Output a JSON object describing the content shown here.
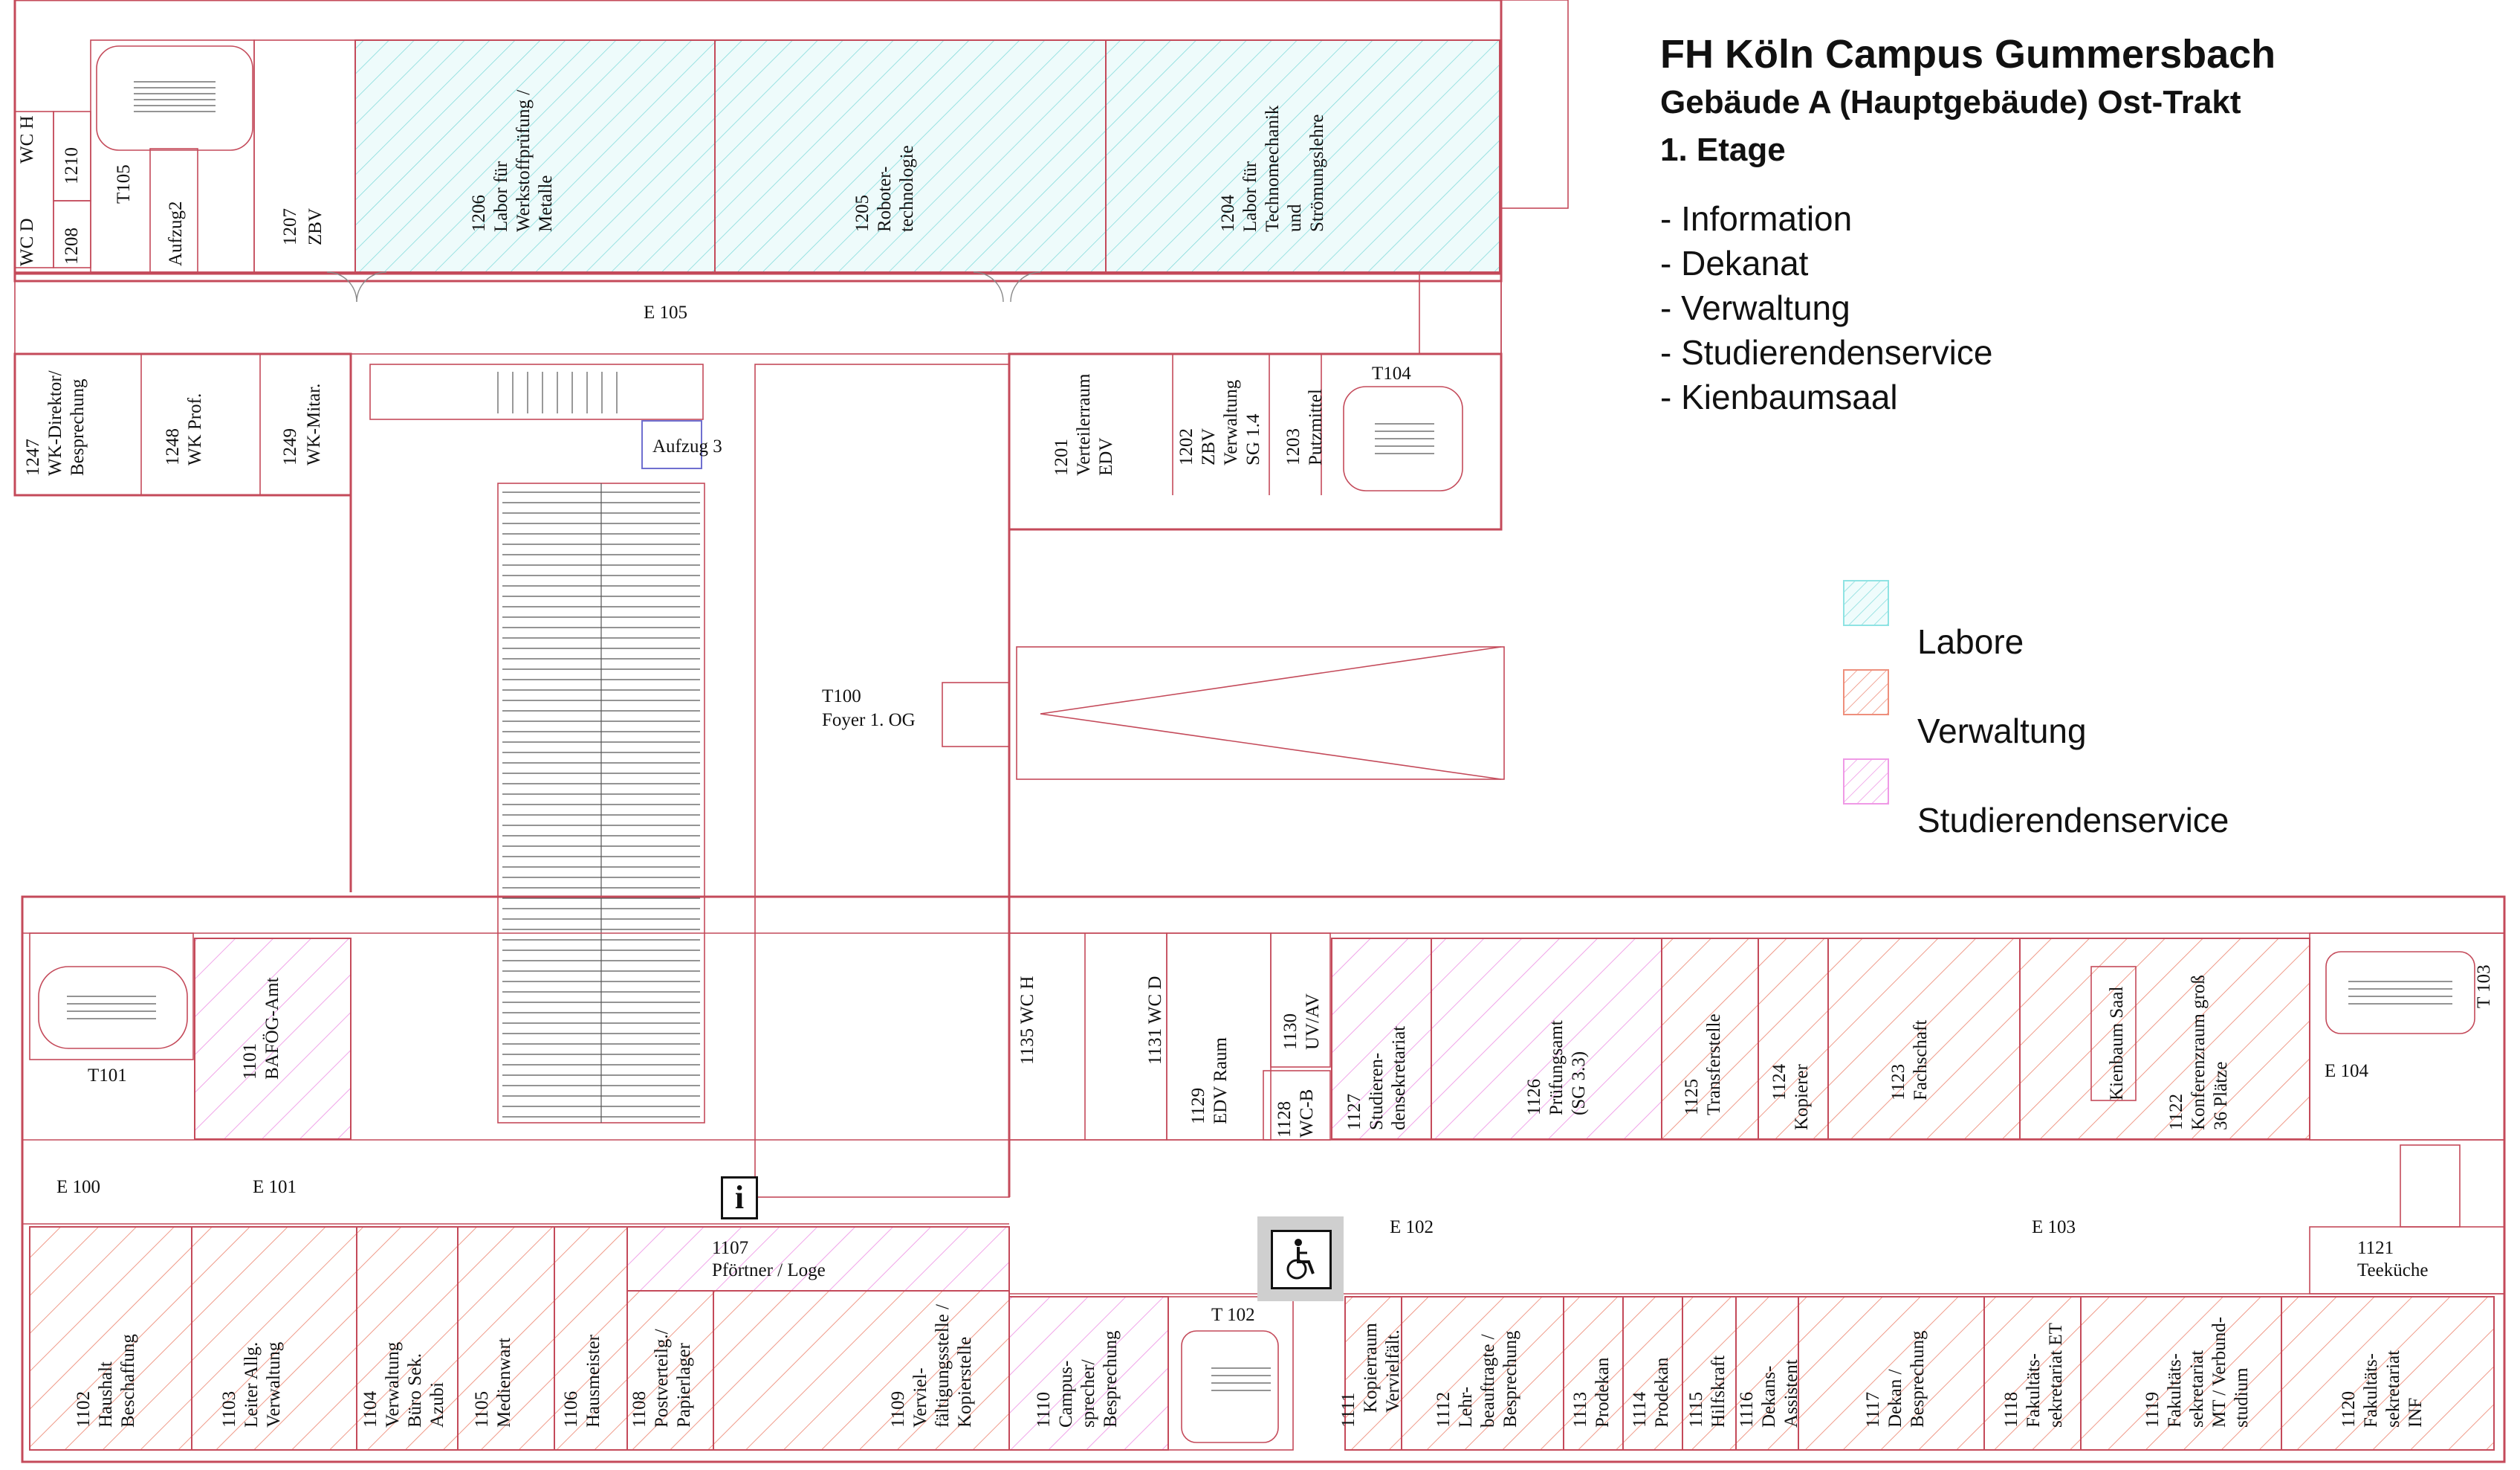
{
  "title": {
    "line1": "FH Köln Campus Gummersbach",
    "line2": "Gebäude A (Hauptgebäude) Ost-Trakt",
    "line3": "1. Etage"
  },
  "services": [
    "- Information",
    "- Dekanat",
    "- Verwaltung",
    "- Studierendenservice",
    "- Kienbaumsaal"
  ],
  "legend": [
    {
      "label": "Labore",
      "color": "#5fd3d6"
    },
    {
      "label": "Verwaltung",
      "color": "#e8735f"
    },
    {
      "label": "Studierendenservice",
      "color": "#e882e0"
    }
  ],
  "rooms_top": {
    "r1210": "1210",
    "wch": "WC H",
    "wcd": "WC D",
    "r1208": "1208",
    "t105": "T105",
    "aufzug2": "Aufzug2",
    "r1207a": "1207",
    "r1207b": "ZBV",
    "r1206a": "1206",
    "r1206b": "Labor für",
    "r1206c": "Werkstoffprüfung /",
    "r1206d": "Metalle",
    "r1205a": "1205",
    "r1205b": "Roboter-",
    "r1205c": "technologie",
    "r1204a": "1204",
    "r1204b": "Labor für",
    "r1204c": "Technomechanik",
    "r1204d": "und",
    "r1204e": "Strömungslehre",
    "e105": "E 105",
    "r1247a": "1247",
    "r1247b": "WK-Direktor/",
    "r1247c": "Besprechung",
    "r1248a": "1248",
    "r1248b": "WK Prof.",
    "r1249a": "1249",
    "r1249b": "WK-Mitar.",
    "aufzug3": "Aufzug 3",
    "r1201a": "1201",
    "r1201b": "Verteilerraum",
    "r1201c": "EDV",
    "r1202a": "1202",
    "r1202b": "ZBV",
    "r1202c": "Verwaltung",
    "r1202d": "SG 1.4",
    "r1203a": "1203",
    "r1203b": "Putzmittel",
    "t104": "T104",
    "t100a": "T100",
    "t100b": "Foyer 1. OG"
  },
  "rooms_bottom": {
    "t101": "T101",
    "r1101a": "1101",
    "r1101b": "BAFÖG-Amt",
    "e100": "E 100",
    "e101": "E 101",
    "r1135": "1135 WC H",
    "r1131": "1131 WC D",
    "r1129a": "1129",
    "r1129b": "EDV Raum",
    "r1130a": "1130",
    "r1130b": "UV/AV",
    "r1128a": "1128",
    "r1128b": "WC-B",
    "r1127a": "1127",
    "r1127b": "Studieren-",
    "r1127c": "densekretariat",
    "r1126a": "1126",
    "r1126b": "Prüfungsamt",
    "r1126c": "(SG 3.3)",
    "r1125a": "1125",
    "r1125b": "Transferstelle",
    "r1124a": "1124",
    "r1124b": "Kopierer",
    "r1123a": "1123",
    "r1123b": "Fachschaft",
    "kienbaum": "Kienbaum Saal",
    "r1122a": "1122",
    "r1122b": "Konferenzraum groß",
    "r1122c": "36 Plätze",
    "t103": "T 103",
    "e104": "E 104",
    "e102": "E 102",
    "e103": "E 103",
    "r1107a": "1107",
    "r1107b": "Pförtner / Loge",
    "r1121a": "1121",
    "r1121b": "Teeküche",
    "t102": "T 102",
    "r1102a": "1102",
    "r1102b": "Haushalt",
    "r1102c": "Beschaffung",
    "r1103a": "1103",
    "r1103b": "Leiter Allg.",
    "r1103c": "Verwaltung",
    "r1104a": "1104",
    "r1104b": "Verwaltung",
    "r1104c": "Büro Sek.",
    "r1104d": "Azubi",
    "r1105a": "1105",
    "r1105b": "Medienwart",
    "r1106a": "1106",
    "r1106b": "Hausmeister",
    "r1108a": "1108",
    "r1108b": "Postverteilg./",
    "r1108c": "Papierlager",
    "r1109a": "1109",
    "r1109b": "Verviel-",
    "r1109c": "fältigungsstelle /",
    "r1109d": "Kopierstelle",
    "r1110a": "1110",
    "r1110b": "Campus-",
    "r1110c": "sprecher/",
    "r1110d": "Besprechung",
    "r1111a": "1111",
    "r1111b": "Kopierraum",
    "r1111c": "Vervielfält.",
    "r1112a": "1112",
    "r1112b": "Lehr-",
    "r1112c": "beauftragte /",
    "r1112d": "Besprechung",
    "r1113a": "1113",
    "r1113b": "Prodekan",
    "r1114a": "1114",
    "r1114b": "Prodekan",
    "r1115a": "1115",
    "r1115b": "Hilfskraft",
    "r1116a": "1116",
    "r1116b": "Dekans-",
    "r1116c": "Assistent",
    "r1117a": "1117",
    "r1117b": "Dekan /",
    "r1117c": "Besprechung",
    "r1118a": "1118",
    "r1118b": "Fakultäts-",
    "r1118c": "sekretariat ET",
    "r1119a": "1119",
    "r1119b": "Fakultäts-",
    "r1119c": "sekretariat",
    "r1119d": "MT / Verbund-",
    "r1119e": "studium",
    "r1120a": "1120",
    "r1120b": "Fakultäts-",
    "r1120c": "sekretariat",
    "r1120d": "INF"
  },
  "signs": {
    "info": "i",
    "info_icon": "information-sign",
    "accessible_icon": "wheelchair-accessible"
  }
}
